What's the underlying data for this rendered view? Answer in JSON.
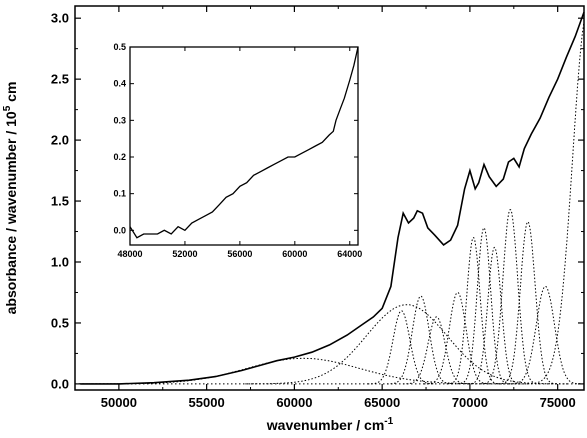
{
  "chart_data": [
    {
      "type": "line",
      "xlabel": "wavenumber / cm",
      "xlabel_sup": "-1",
      "ylabel": "absorbance / wavenumber / 10",
      "ylabel_sup": "5",
      "ylabel_suffix": " cm",
      "xlim": [
        47500,
        76500
      ],
      "ylim": [
        -0.05,
        3.1
      ],
      "xticks": [
        "50000",
        "55000",
        "60000",
        "65000",
        "70000",
        "75000"
      ],
      "yticks": [
        "0.0",
        "0.5",
        "1.0",
        "1.5",
        "2.0",
        "2.5",
        "3.0"
      ],
      "grid": false,
      "legend": "none",
      "series": [
        {
          "style": "solid",
          "color": "#000000",
          "x": [
            47800,
            50000,
            52000,
            54000,
            55500,
            57000,
            58000,
            59000,
            60000,
            61000,
            62000,
            63000,
            63800,
            64500,
            65000,
            65500,
            65900,
            66200,
            66500,
            66800,
            67000,
            67300,
            67600,
            68000,
            68500,
            68900,
            69300,
            69700,
            70000,
            70300,
            70500,
            70800,
            71100,
            71500,
            71900,
            72200,
            72500,
            72800,
            73100,
            73500,
            74000,
            74500,
            75000,
            75500,
            76000,
            76500
          ],
          "y": [
            0.0,
            0.0,
            0.01,
            0.03,
            0.06,
            0.11,
            0.15,
            0.19,
            0.22,
            0.26,
            0.32,
            0.4,
            0.48,
            0.55,
            0.62,
            0.8,
            1.2,
            1.4,
            1.32,
            1.36,
            1.42,
            1.4,
            1.28,
            1.22,
            1.14,
            1.18,
            1.3,
            1.6,
            1.75,
            1.6,
            1.65,
            1.8,
            1.7,
            1.62,
            1.68,
            1.82,
            1.85,
            1.78,
            1.93,
            2.05,
            2.18,
            2.35,
            2.5,
            2.68,
            2.85,
            3.05
          ]
        }
      ],
      "dotted_components": [
        {
          "center": 60500,
          "height": 0.21,
          "width": 3200
        },
        {
          "center": 66400,
          "height": 0.65,
          "width": 2300
        },
        {
          "center": 66100,
          "height": 0.6,
          "width": 480
        },
        {
          "center": 67200,
          "height": 0.72,
          "width": 480
        },
        {
          "center": 68100,
          "height": 0.55,
          "width": 480
        },
        {
          "center": 69300,
          "height": 0.75,
          "width": 480
        },
        {
          "center": 70200,
          "height": 1.2,
          "width": 380
        },
        {
          "center": 70800,
          "height": 1.28,
          "width": 380
        },
        {
          "center": 71400,
          "height": 1.12,
          "width": 380
        },
        {
          "center": 72300,
          "height": 1.43,
          "width": 420
        },
        {
          "center": 73300,
          "height": 1.33,
          "width": 420
        },
        {
          "center": 74300,
          "height": 0.8,
          "width": 520
        },
        {
          "center": 76700,
          "height": 3.05,
          "width": 850
        }
      ]
    },
    {
      "type": "line",
      "xlim": [
        48000,
        64600
      ],
      "ylim": [
        -0.04,
        0.5
      ],
      "xticks": [
        "48000",
        "52000",
        "56000",
        "60000",
        "64000"
      ],
      "yticks": [
        "0.0",
        "0.1",
        "0.2",
        "0.3",
        "0.4",
        "0.5"
      ],
      "grid": false,
      "legend": "none",
      "series": [
        {
          "style": "solid",
          "color": "#000000",
          "x": [
            48000,
            48500,
            49000,
            49500,
            50000,
            50500,
            51000,
            51500,
            52000,
            52500,
            53000,
            53500,
            54000,
            54500,
            55000,
            55500,
            56000,
            56500,
            57000,
            57500,
            58000,
            58500,
            59000,
            59500,
            60000,
            60500,
            61000,
            61500,
            62000,
            62500,
            62800,
            63000,
            63300,
            63600,
            64000,
            64300,
            64600
          ],
          "y": [
            0.01,
            -0.02,
            -0.01,
            -0.01,
            -0.01,
            0.0,
            -0.01,
            0.01,
            0.0,
            0.02,
            0.03,
            0.04,
            0.05,
            0.07,
            0.09,
            0.1,
            0.12,
            0.13,
            0.15,
            0.16,
            0.17,
            0.18,
            0.19,
            0.2,
            0.2,
            0.21,
            0.22,
            0.23,
            0.24,
            0.26,
            0.27,
            0.3,
            0.33,
            0.36,
            0.41,
            0.45,
            0.5
          ]
        }
      ]
    }
  ]
}
